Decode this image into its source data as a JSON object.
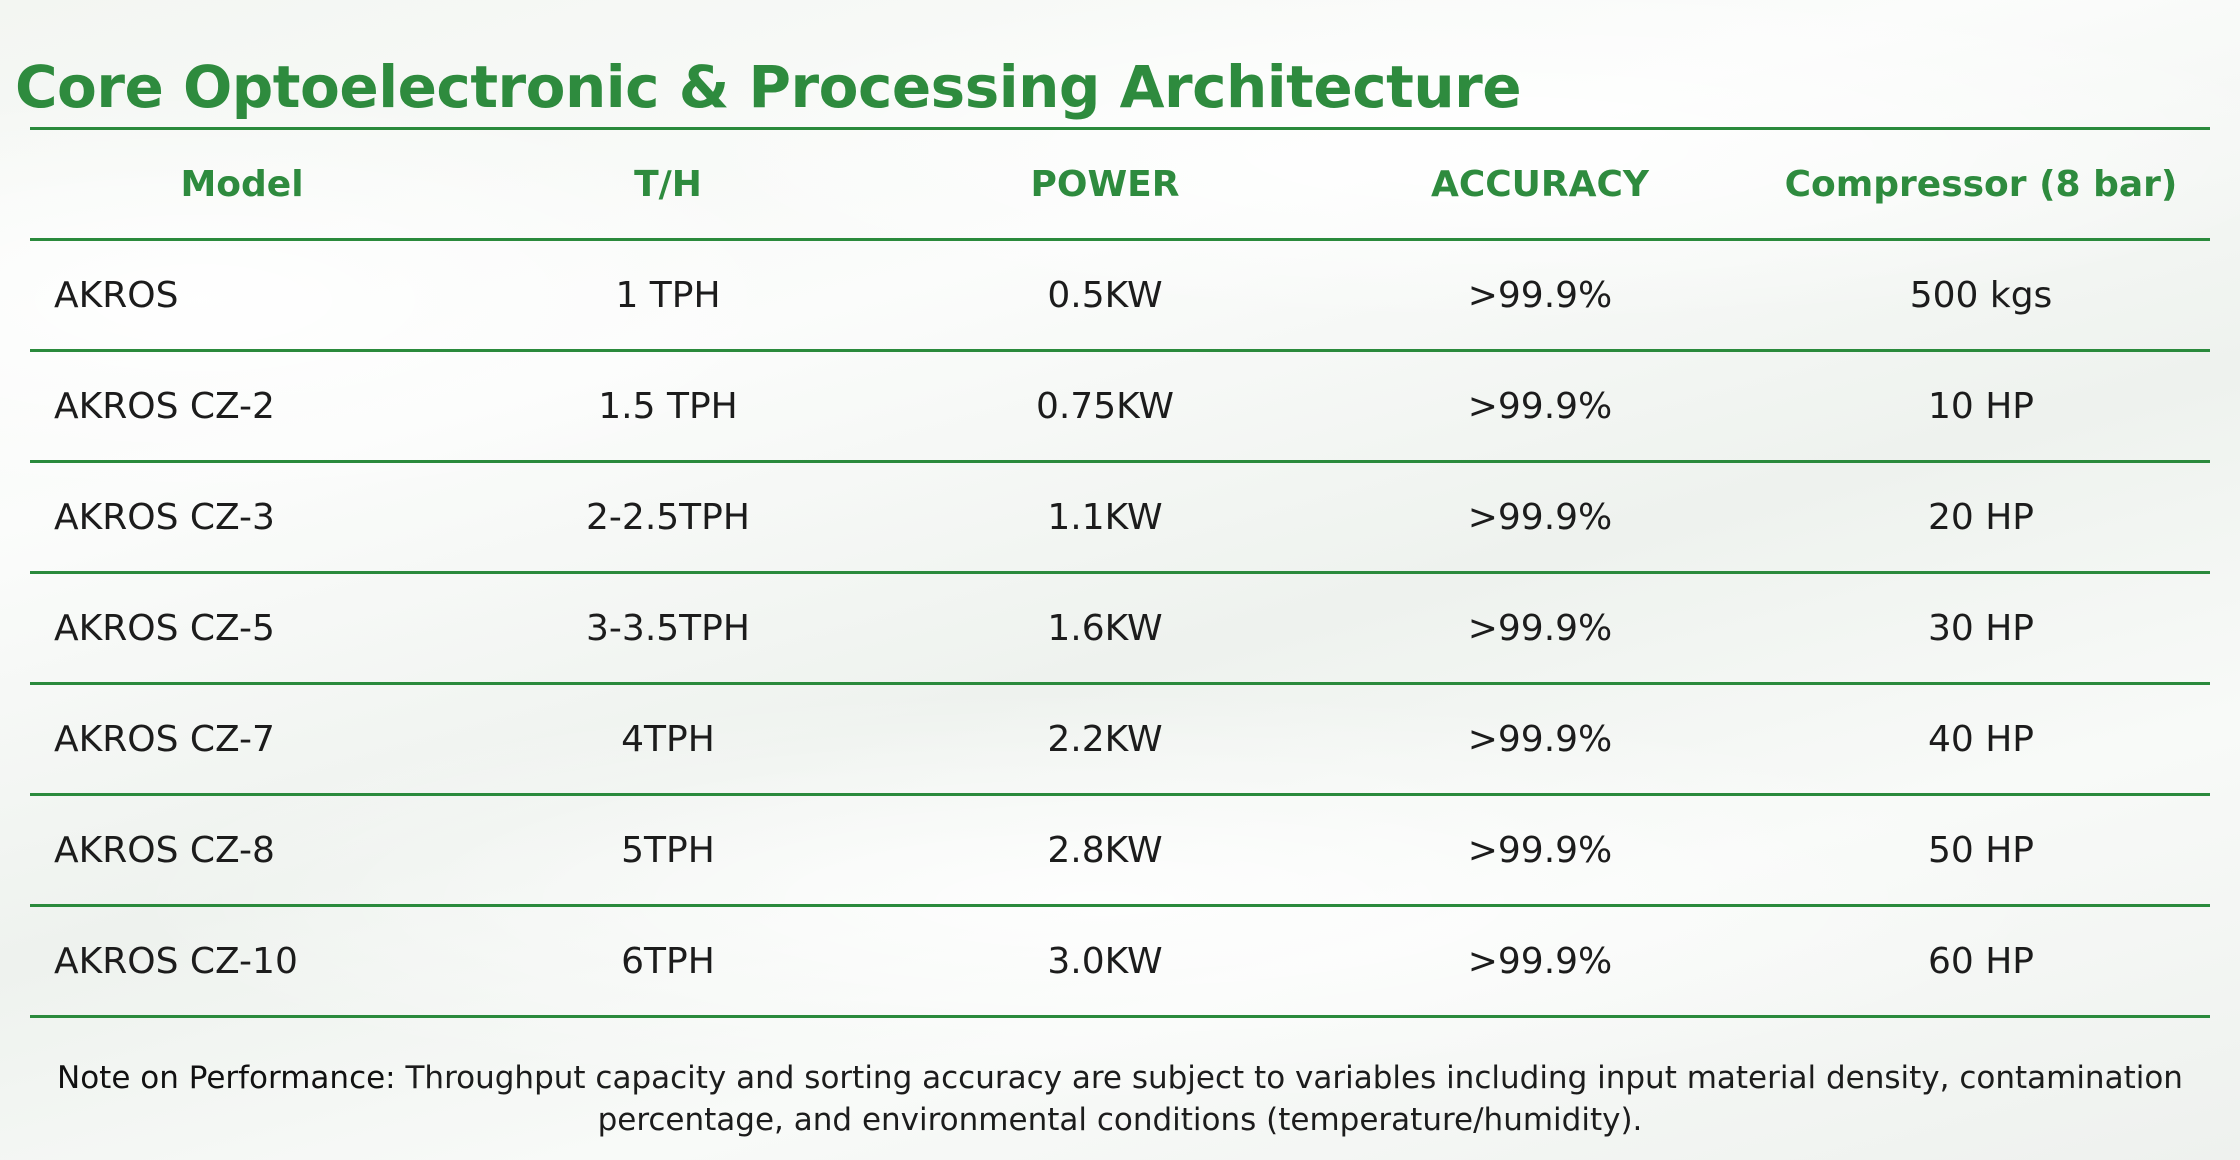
{
  "title": "Core Optoelectronic & Processing Architecture",
  "table": {
    "headers": [
      "Model",
      "T/H",
      "POWER",
      "ACCURACY",
      "Compressor (8 bar)"
    ],
    "rows": [
      [
        "AKROS",
        "1 TPH",
        "0.5KW",
        ">99.9%",
        "500 kgs"
      ],
      [
        "AKROS CZ-2",
        "1.5 TPH",
        "0.75KW",
        ">99.9%",
        "10 HP"
      ],
      [
        "AKROS CZ-3",
        "2-2.5TPH",
        "1.1KW",
        ">99.9%",
        "20 HP"
      ],
      [
        "AKROS CZ-5",
        "3-3.5TPH",
        "1.6KW",
        ">99.9%",
        "30 HP"
      ],
      [
        "AKROS CZ-7",
        "4TPH",
        "2.2KW",
        ">99.9%",
        "40 HP"
      ],
      [
        "AKROS CZ-8",
        "5TPH",
        "2.8KW",
        ">99.9%",
        "50 HP"
      ],
      [
        "AKROS CZ-10",
        "6TPH",
        "3.0KW",
        ">99.9%",
        "60 HP"
      ]
    ]
  },
  "note": {
    "label": "Note on Performance:",
    "text": "Throughput capacity and sorting accuracy are subject to variables including input material density, contamination percentage, and environmental conditions (temperature/humidity)."
  },
  "colors": {
    "accent": "#2e8b3e",
    "rule": "#2a8a3c",
    "text": "#1c1c1c"
  }
}
